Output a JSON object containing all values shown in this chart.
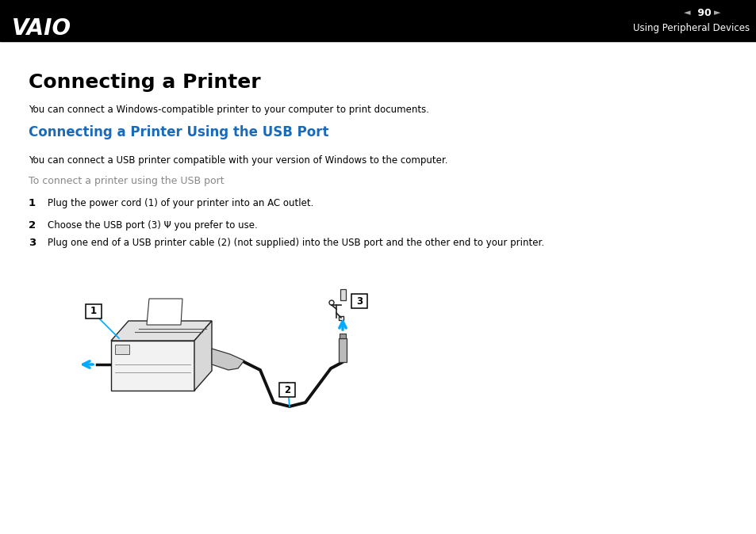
{
  "bg_color": "#ffffff",
  "header_bg": "#000000",
  "header_text_color": "#ffffff",
  "page_number": "90",
  "header_right_text": "Using Peripheral Devices",
  "title": "Connecting a Printer",
  "subtitle_blue": "Connecting a Printer Using the USB Port",
  "subtitle_blue_color": "#1a6aba",
  "body_text1": "You can connect a Windows-compatible printer to your computer to print documents.",
  "body_text2": "You can connect a USB printer compatible with your version of Windows to the computer.",
  "step_header": "To connect a printer using the USB port",
  "step_header_color": "#888888",
  "step1_num": "1",
  "step1_text": "Plug the power cord (1) of your printer into an AC outlet.",
  "step2_num": "2",
  "step2_text": "Choose the USB port (3) Ψ you prefer to use.",
  "step3_num": "3",
  "step3_text": "Plug one end of a USB printer cable (2) (not supplied) into the USB port and the other end to your printer.",
  "arrow_color": "#00AAFF",
  "cable_color": "#111111",
  "label_border_color": "#000000"
}
